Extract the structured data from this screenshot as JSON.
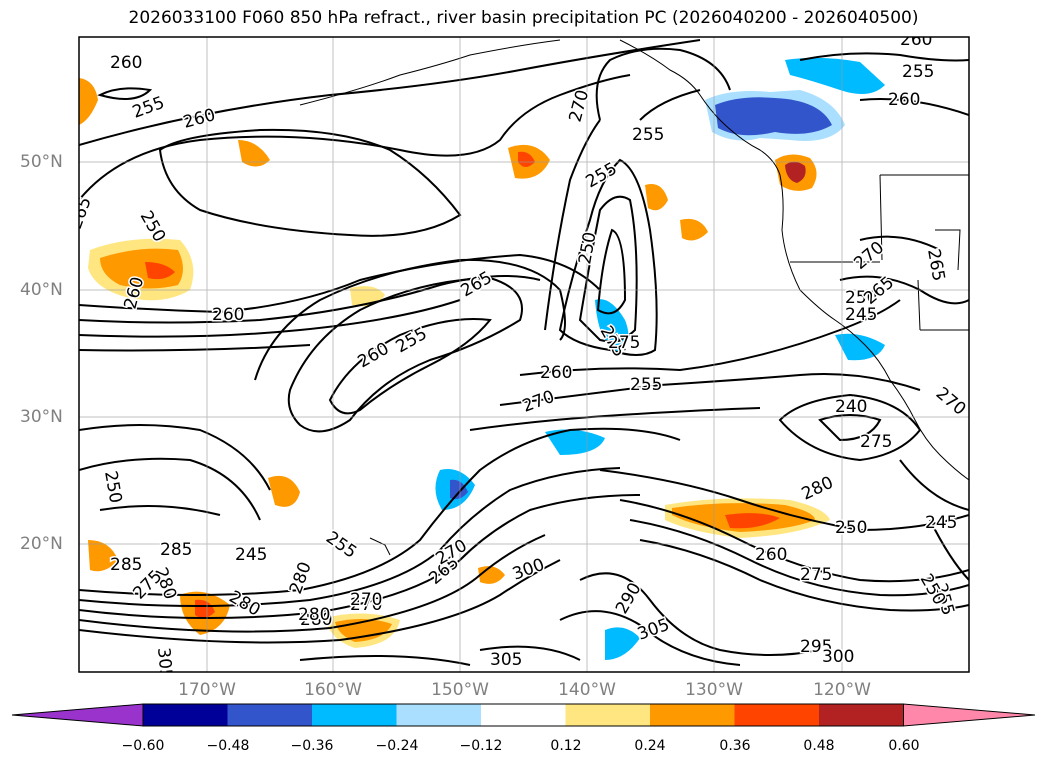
{
  "title": "2026033100 F060 850 hPa refract., river basin precipitation PC (2026040200 - 2026040500)",
  "lat_labels": [
    "50°N",
    "40°N",
    "30°N",
    "20°N"
  ],
  "lon_labels": [
    "170°W",
    "160°W",
    "150°W",
    "140°W",
    "130°W",
    "120°W"
  ],
  "colorbar": {
    "tick_labels": [
      "−0.60",
      "−0.48",
      "−0.36",
      "−0.24",
      "−0.12",
      "0.12",
      "0.24",
      "0.36",
      "0.48",
      "0.60"
    ],
    "colors": [
      "#9933cc",
      "#000099",
      "#3355cc",
      "#00bbff",
      "#aadfff",
      "#ffffff",
      "#ffe680",
      "#ff9900",
      "#ff4400",
      "#b22222",
      "#ff88aa"
    ]
  },
  "contour_labels": [
    "260",
    "255",
    "260",
    "265",
    "270",
    "255",
    "260",
    "255",
    "250",
    "255",
    "250",
    "260",
    "260",
    "265",
    "270",
    "260",
    "255",
    "260",
    "255",
    "270",
    "275",
    "275",
    "240",
    "245",
    "250",
    "265",
    "265",
    "270",
    "275",
    "250",
    "245",
    "280",
    "250",
    "260",
    "245",
    "255",
    "275",
    "280",
    "280",
    "285",
    "280",
    "275",
    "280",
    "285",
    "270",
    "265",
    "270",
    "300",
    "280",
    "270",
    "305",
    "290",
    "305",
    "305",
    "295",
    "300",
    "260",
    "255",
    "250"
  ],
  "precip_colors": {
    "orange": "#ff9900",
    "light_yellow": "#ffe680",
    "red": "#ff4400",
    "dark_red": "#b22222",
    "cyan": "#00bbff",
    "light_blue": "#aadfff",
    "blue": "#3355cc"
  }
}
